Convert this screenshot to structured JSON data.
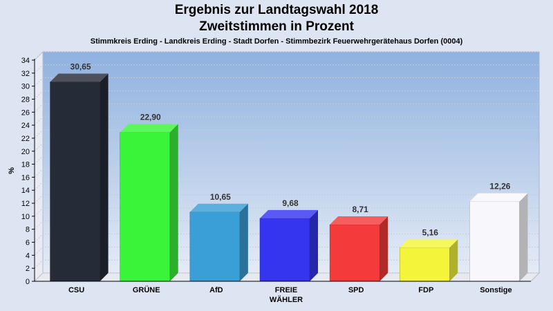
{
  "chart_data": {
    "type": "bar",
    "title": "Ergebnis zur Landtagswahl 2018",
    "title2": "Zweitstimmen in Prozent",
    "subtitle": "Stimmkreis Erding - Landkreis Erding - Stadt Dorfen - Stimmbezirk Feuerwehrgerätehaus Dorfen (0004)",
    "ylabel": "%",
    "xlabel": "",
    "ylim": [
      0,
      34
    ],
    "yticks": [
      0,
      2,
      4,
      6,
      8,
      10,
      12,
      14,
      16,
      18,
      20,
      22,
      24,
      26,
      28,
      30,
      32,
      34
    ],
    "grid": true,
    "categories": [
      "CSU",
      "GRÜNE",
      "AfD",
      "FREIE WÄHLER",
      "SPD",
      "FDP",
      "Sonstige"
    ],
    "category_lines": [
      [
        "CSU"
      ],
      [
        "GRÜNE"
      ],
      [
        "AfD"
      ],
      [
        "FREIE",
        "WÄHLER"
      ],
      [
        "SPD"
      ],
      [
        "FDP"
      ],
      [
        "Sonstige"
      ]
    ],
    "values": [
      30.65,
      22.9,
      10.65,
      9.68,
      8.71,
      5.16,
      12.26
    ],
    "value_labels": [
      "30,65",
      "22,90",
      "10,65",
      "9,68",
      "8,71",
      "5,16",
      "12,26"
    ],
    "colors": [
      "#262b38",
      "#3af43a",
      "#3a9fd6",
      "#3535f0",
      "#f43a3a",
      "#f4f43a",
      "#f8f8fc"
    ],
    "background_top": "#8fb1df",
    "background_bottom": "#e4ebf6"
  }
}
